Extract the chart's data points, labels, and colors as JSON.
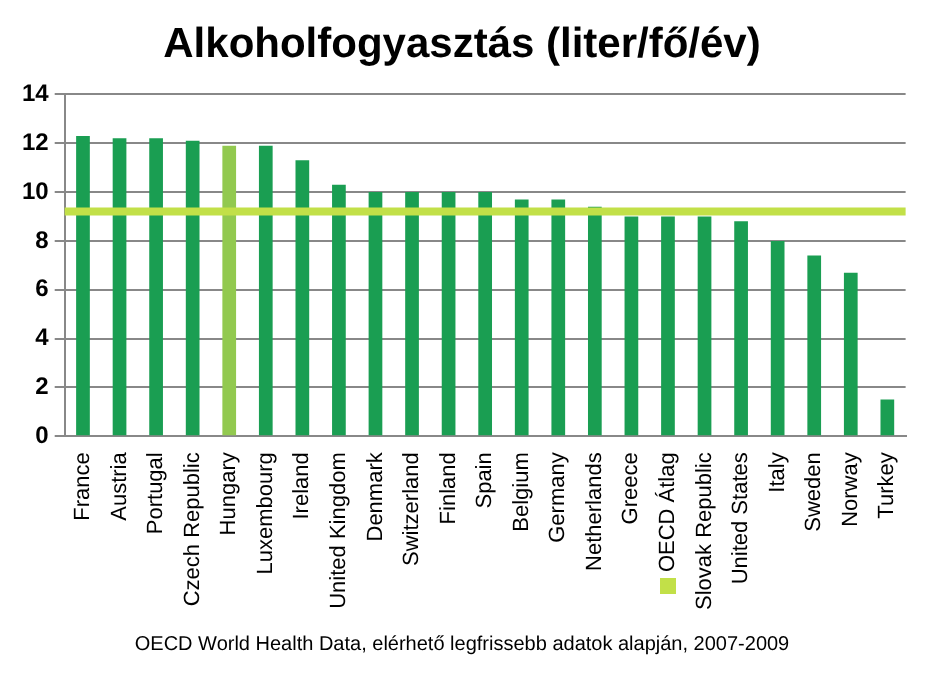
{
  "chart_data": {
    "type": "bar",
    "title": "Alkoholfogyasztás (liter/fő/év)",
    "categories": [
      "France",
      "Austria",
      "Portugal",
      "Czech Republic",
      "Hungary",
      "Luxembourg",
      "Ireland",
      "United Kingdom",
      "Denmark",
      "Switzerland",
      "Finland",
      "Spain",
      "Belgium",
      "Germany",
      "Netherlands",
      "Greece",
      "OECD Átlag",
      "Slovak Republic",
      "United States",
      "Italy",
      "Sweden",
      "Norway",
      "Turkey"
    ],
    "values": [
      12.3,
      12.2,
      12.2,
      12.1,
      11.9,
      11.9,
      11.3,
      10.3,
      10.0,
      10.0,
      10.0,
      10.0,
      9.7,
      9.7,
      9.4,
      9.0,
      9.0,
      9.0,
      8.8,
      8.0,
      7.4,
      6.7,
      1.5
    ],
    "colors": [
      "#1a9e52",
      "#1a9e52",
      "#1a9e52",
      "#1a9e52",
      "#92c94f",
      "#1a9e52",
      "#1a9e52",
      "#1a9e52",
      "#1a9e52",
      "#1a9e52",
      "#1a9e52",
      "#1a9e52",
      "#1a9e52",
      "#1a9e52",
      "#1a9e52",
      "#1a9e52",
      "#1a9e52",
      "#1a9e52",
      "#1a9e52",
      "#1a9e52",
      "#1a9e52",
      "#1a9e52",
      "#1a9e52"
    ],
    "ylim": [
      0,
      14
    ],
    "yticks": [
      0,
      2,
      4,
      6,
      8,
      10,
      12,
      14
    ],
    "grid": "y",
    "ref_lines": [
      {
        "axis": "y",
        "value": 9.2,
        "color": "#c2e048"
      }
    ],
    "annotations": [
      "OECD World Health Data, elérhető legfrissebb adatok alapján, 2007-2009"
    ]
  }
}
